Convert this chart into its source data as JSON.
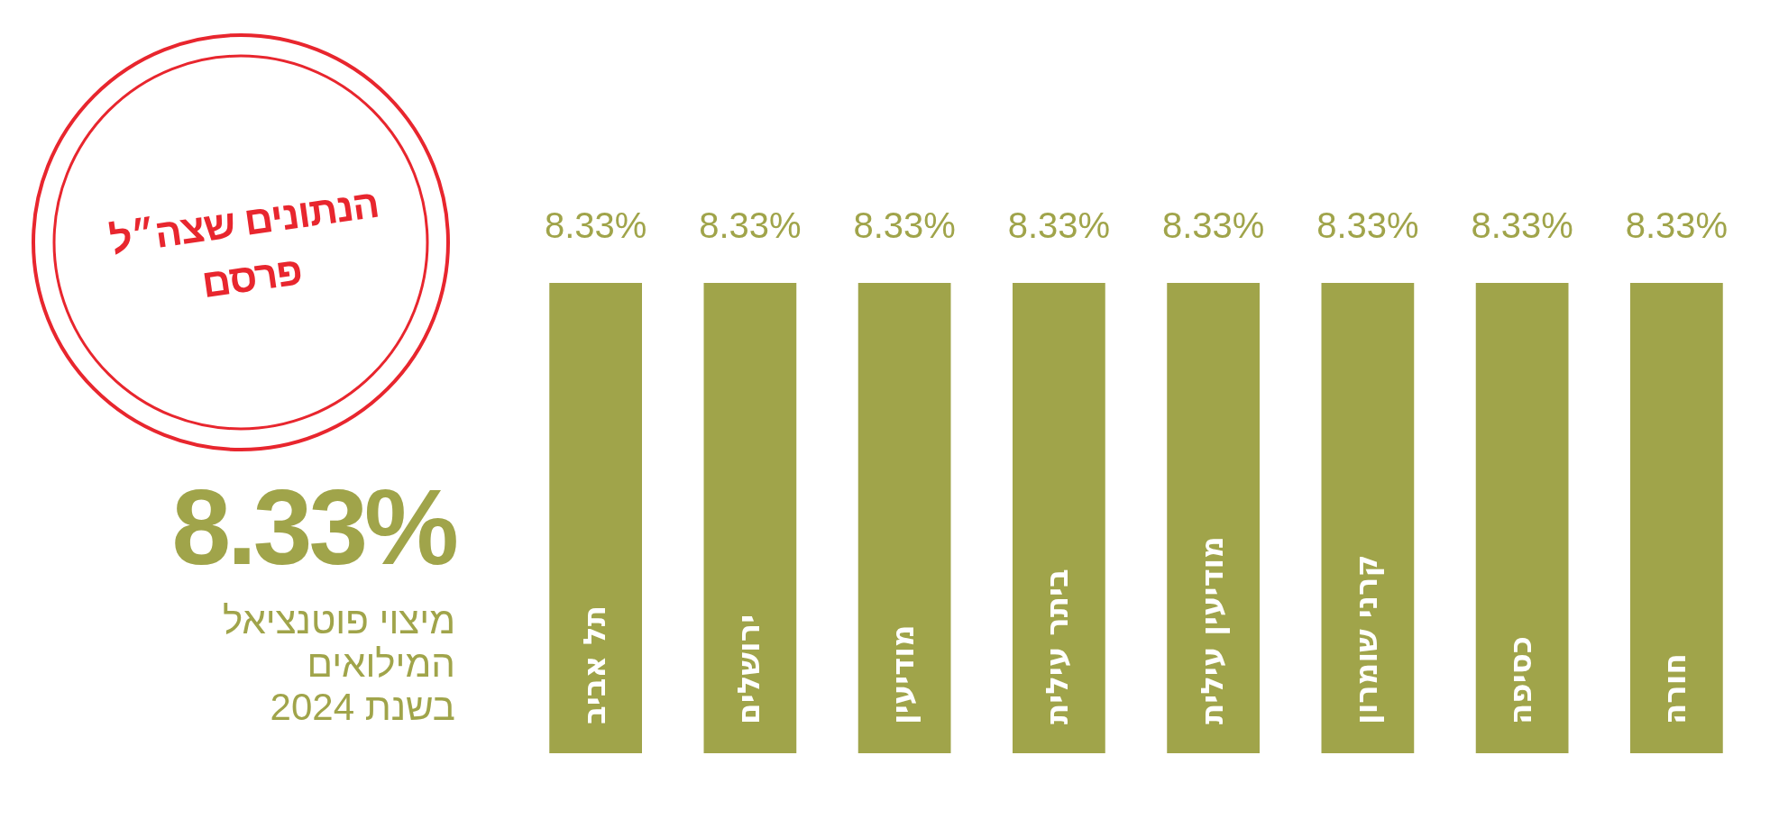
{
  "chart_data": {
    "type": "bar",
    "categories": [
      "תל אביב",
      "ירושלים",
      "מודיעין",
      "ביתר עילית",
      "מודיעין עילית",
      "קרני שומרון",
      "כסיפה",
      "חורה"
    ],
    "values": [
      8.33,
      8.33,
      8.33,
      8.33,
      8.33,
      8.33,
      8.33,
      8.33
    ],
    "value_labels": [
      "8.33%",
      "8.33%",
      "8.33%",
      "8.33%",
      "8.33%",
      "8.33%",
      "8.33%",
      "8.33%"
    ],
    "color": "#a0a44a",
    "tick_labels": false,
    "annotations": [
      "הנתונים שצה״ל פרסם",
      "8.33%",
      "מיצוי פוטנציאל המילואים בשנת 2024"
    ]
  }
}
